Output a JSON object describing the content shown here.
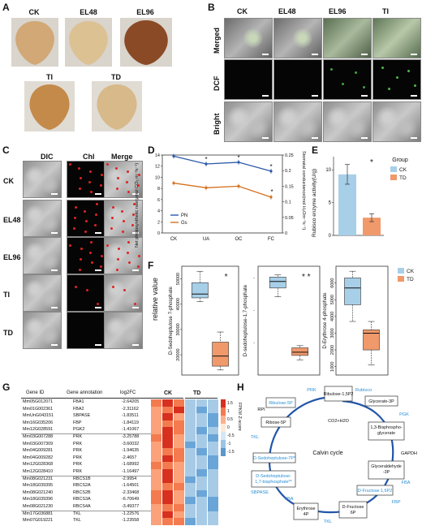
{
  "panels": {
    "A": "A",
    "B": "B",
    "C": "C",
    "D": "D",
    "E": "E",
    "F": "F",
    "G": "G",
    "H": "H"
  },
  "panelA": {
    "leaves": [
      "CK",
      "EL48",
      "EL96",
      "TI",
      "TD"
    ]
  },
  "panelB": {
    "columns": [
      "CK",
      "EL48",
      "EL96",
      "TI"
    ],
    "rows": [
      "Merged",
      "DCF",
      "Bright"
    ]
  },
  "panelC": {
    "columns": [
      "DIC",
      "Chl",
      "Merge"
    ],
    "rows": [
      "CK",
      "EL48",
      "EL96",
      "TI",
      "TD"
    ]
  },
  "panelD": {
    "ylabel_left": "Net photosynthetic rate(μmol CO₂ m⁻²s⁻¹)",
    "ylabel_right": "Stomatal conductance(mol H₂Om⁻²s⁻¹)",
    "legend": [
      "PN",
      "Gs"
    ]
  },
  "panelE": {
    "ylabel": "Rubisco enzyme activity(U/g)",
    "legend_title": "Group",
    "legend": [
      "CK",
      "TD"
    ],
    "sig": "*"
  },
  "panelF": {
    "ylabel": "relative value",
    "plots": [
      {
        "label": "D-Sedoheptulose 7-phosphate",
        "sig": "*"
      },
      {
        "label": "D-sedoheptulose-1,7-phosphate",
        "sig": "* *"
      },
      {
        "label": "D-Erythrose 4-phosphate",
        "sig": ""
      }
    ],
    "legend": [
      "CK",
      "TD"
    ]
  },
  "panelG": {
    "headers": [
      "Gene ID",
      "Gene annotation",
      "log2FC"
    ],
    "heat_headers": [
      "CK",
      "TD"
    ],
    "colorbar_label": "FPKM Z-score",
    "colorbar_ticks": [
      "1.5",
      "1",
      "0.5",
      "0",
      "-0.5",
      "-1",
      "-1.5"
    ],
    "rows": [
      [
        "Mm05G012071",
        "FBA1",
        "-2.64205"
      ],
      [
        "Mm01G002361",
        "FBA2",
        "-2.31162"
      ],
      [
        "MmUnG043151",
        "SBPASE",
        "-1.83511"
      ],
      [
        "Mm16G035206",
        "FBP",
        "-1.84119"
      ],
      [
        "Mm12G028591",
        "PGK2",
        "-1.41067"
      ],
      [
        "Mm03G007288",
        "PRK",
        "-3.25788"
      ],
      [
        "Mm03G007309",
        "PRK",
        "-3.60032"
      ],
      [
        "Mm04G009281",
        "PRK",
        "-1.94635"
      ],
      [
        "Mm04G009282",
        "PRK",
        "-2.4657"
      ],
      [
        "Mm12G028368",
        "PRK",
        "-1.68992"
      ],
      [
        "Mm12G028410",
        "PRK",
        "-1.16497"
      ],
      [
        "Mm08G021231",
        "RBCS1B",
        "-2.9954"
      ],
      [
        "Mm18G039395",
        "RBCS2A",
        "-1.64501"
      ],
      [
        "Mm08G021240",
        "RBCS2B",
        "-2.33468"
      ],
      [
        "Mm18G039396",
        "RBCS3A",
        "-6.70649"
      ],
      [
        "Mm08G021230",
        "RBCS4A",
        "-3.49377"
      ],
      [
        "Mm17G036881",
        "TKL",
        "-1.22576"
      ],
      [
        "Mm07G019221",
        "TKL",
        "-1.23558"
      ]
    ],
    "heat": [
      [
        0.9,
        1.2,
        1.0,
        -0.6,
        -0.8,
        -0.7
      ],
      [
        0.8,
        1.1,
        1.2,
        -0.7,
        -0.9,
        -0.6
      ],
      [
        0.6,
        1.3,
        0.7,
        -0.6,
        -0.8,
        -0.9
      ],
      [
        0.7,
        1.0,
        1.1,
        -0.8,
        -0.6,
        -0.9
      ],
      [
        0.5,
        1.2,
        0.9,
        -0.7,
        -0.9,
        -0.8
      ],
      [
        0.9,
        1.4,
        0.6,
        -0.8,
        -0.7,
        -0.9
      ],
      [
        0.8,
        1.3,
        0.8,
        -0.9,
        -0.6,
        -0.8
      ],
      [
        0.7,
        1.1,
        1.0,
        -0.7,
        -0.9,
        -0.7
      ],
      [
        0.6,
        1.2,
        0.9,
        -0.8,
        -0.7,
        -0.9
      ],
      [
        0.9,
        1.0,
        0.8,
        -0.6,
        -0.8,
        -0.9
      ],
      [
        0.5,
        1.3,
        0.7,
        -0.7,
        -0.9,
        -0.6
      ],
      [
        0.8,
        1.4,
        0.6,
        -0.9,
        -0.7,
        -0.8
      ],
      [
        0.7,
        1.1,
        0.9,
        -0.8,
        -0.8,
        -0.7
      ],
      [
        0.9,
        1.2,
        0.5,
        -0.6,
        -0.9,
        -0.8
      ],
      [
        1.0,
        1.3,
        0.7,
        -0.9,
        -0.8,
        -0.9
      ],
      [
        0.8,
        1.0,
        1.0,
        -0.7,
        -0.6,
        -0.9
      ],
      [
        0.6,
        1.2,
        0.8,
        -0.8,
        -0.7,
        -0.7
      ],
      [
        0.7,
        1.1,
        0.9,
        -0.9,
        -0.8,
        -0.6
      ]
    ]
  },
  "panelH": {
    "center": "Calvin cycle",
    "nodes": [
      "Ribulose-1,5P2",
      "Glycerate-3P",
      "1,3-Bisphospho-\nglycerate",
      "Glyceraldehyde\n-3P",
      "D-Fructose 1,6P2",
      "D-Fructose\n6P",
      "Erythrose\n4P",
      "D-Sedoheptulose-\n1,7-bisphosphate**",
      "D-Sedoheptulose-7P*",
      "Ribose-5P",
      "Ribulose-5P"
    ],
    "enzymes": [
      "PRK",
      "Rubisco",
      "PGK",
      "GAPDH",
      "FBA",
      "FBP",
      "TKL",
      "FBA",
      "SBPASE",
      "TKL",
      "RPI"
    ],
    "co2": "CO2+H2O"
  },
  "chart_data": [
    {
      "panel": "D",
      "type": "line",
      "categories": [
        "CK",
        "UA",
        "OC",
        "FC"
      ],
      "series": [
        {
          "name": "PN",
          "axis": "left",
          "values": [
            13.8,
            12.4,
            12.7,
            11.1
          ],
          "color": "#2b59a8"
        },
        {
          "name": "Gs",
          "axis": "right",
          "values": [
            0.16,
            0.145,
            0.15,
            0.115
          ],
          "color": "#d4711f"
        }
      ],
      "ylim_left": [
        0,
        14
      ],
      "ylim_right": [
        0,
        0.25
      ],
      "yticks_left": [
        "0",
        "2",
        "4",
        "6",
        "8",
        "10",
        "12",
        "14"
      ],
      "yticks_right": [
        "0",
        "0.05",
        "0.1",
        "0.15",
        "0.2",
        "0.25"
      ],
      "significance": [
        "",
        "*",
        "*",
        "*"
      ]
    },
    {
      "panel": "E",
      "type": "bar",
      "categories": [
        "CK",
        "TD"
      ],
      "values": [
        9.3,
        2.7
      ],
      "errors": [
        1.5,
        0.6
      ],
      "colors": [
        "#a8cfe8",
        "#f0996b"
      ],
      "ylim": [
        0,
        12
      ],
      "yticks": [
        "0",
        "5",
        "10"
      ]
    },
    {
      "panel": "F",
      "type": "box",
      "title": "D-Sedoheptulose 7-phosphate",
      "yticks": [
        "20000",
        "30000",
        "40000",
        "50000"
      ],
      "ylim": [
        12000,
        55000
      ],
      "boxes": [
        {
          "group": "CK",
          "min": 41000,
          "q1": 42500,
          "median": 44000,
          "q3": 48500,
          "max": 53000
        },
        {
          "group": "TD",
          "min": 14000,
          "q1": 15500,
          "median": 19500,
          "q3": 25000,
          "max": 29000
        }
      ]
    },
    {
      "panel": "F",
      "type": "box",
      "title": "D-sedoheptulose-1,7-phosphate",
      "yticks": [
        "-",
        "-",
        "-"
      ],
      "ylim": [
        0,
        100
      ],
      "boxes": [
        {
          "group": "CK",
          "min": 72,
          "q1": 80,
          "median": 86,
          "q3": 90,
          "max": 92
        },
        {
          "group": "TD",
          "min": 14,
          "q1": 18,
          "median": 21,
          "q3": 25,
          "max": 27
        }
      ]
    },
    {
      "panel": "F",
      "type": "box",
      "title": "D-Erythrose 4-phosphate",
      "yticks": [
        "1000",
        "2000",
        "3000",
        "4000",
        "5000",
        "6000"
      ],
      "ylim": [
        500,
        7000
      ],
      "boxes": [
        {
          "group": "CK",
          "min": 3700,
          "q1": 4700,
          "median": 5700,
          "q3": 6300,
          "max": 6700
        },
        {
          "group": "TD",
          "min": 1100,
          "q1": 2000,
          "median": 3000,
          "q3": 3200,
          "max": 3700
        }
      ]
    }
  ]
}
